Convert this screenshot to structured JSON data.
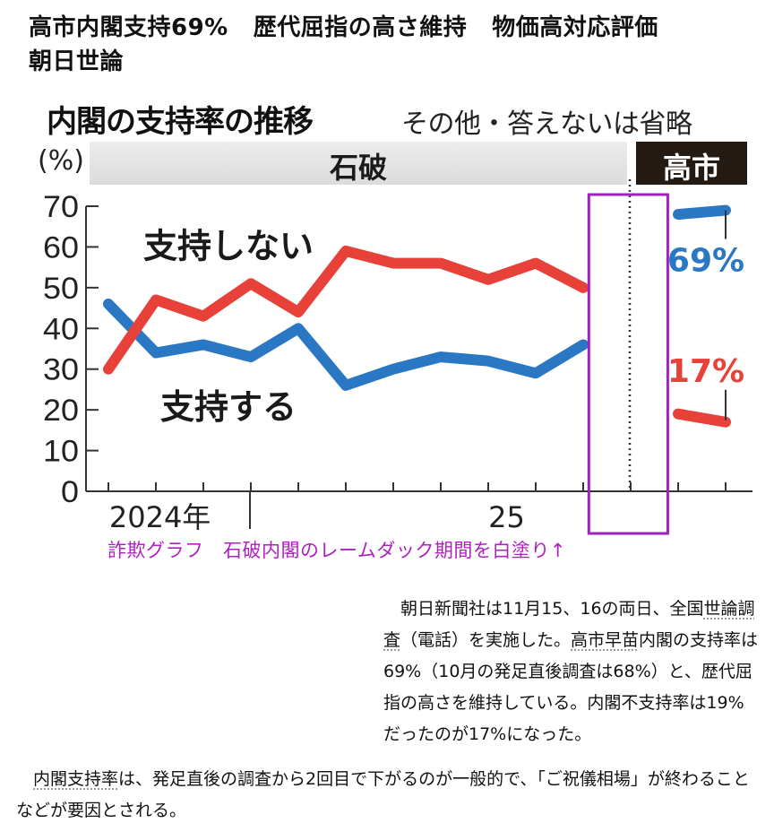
{
  "headline": {
    "part1": "高市内閣支持69%",
    "part2": "歴代屈指の高さ維持",
    "part3": "物価高対応評価",
    "line2": "朝日世論"
  },
  "chart_data": {
    "type": "line",
    "title": "内閣の支持率の推移",
    "subtitle": "その他・答えないは省略",
    "ylabel": "(%)",
    "ylim": [
      0,
      70
    ],
    "yticks": [
      "0",
      "10",
      "20",
      "30",
      "40",
      "50",
      "60",
      "70"
    ],
    "xlabels": [
      {
        "label": "2024年",
        "x": 1.2
      },
      {
        "label": "25",
        "x": 8.5
      }
    ],
    "x_tick_count": 14,
    "year_divider_x": 3,
    "cabinet_divider_x": 11,
    "periods": [
      {
        "name": "石破",
        "from": 0,
        "to": 11,
        "color": "#e2e2e2",
        "text_color": "#1a1a1a"
      },
      {
        "name": "高市",
        "from": 11,
        "to": 13.5,
        "color": "#231a14",
        "text_color": "#ffffff"
      }
    ],
    "series": [
      {
        "name": "支持する",
        "color": "#2a78c4",
        "label_pos": "below",
        "segments": [
          {
            "x": [
              0,
              1,
              2,
              3,
              4,
              5,
              6,
              7,
              8,
              9,
              10
            ],
            "values": [
              46,
              34,
              36,
              33,
              40,
              26,
              30,
              33,
              32,
              29,
              36
            ]
          },
          {
            "x": [
              12,
              13
            ],
            "values": [
              68,
              69
            ]
          }
        ],
        "end_label": "69%"
      },
      {
        "name": "支持しない",
        "color": "#e8413a",
        "label_pos": "above",
        "segments": [
          {
            "x": [
              0,
              1,
              2,
              3,
              4,
              5,
              6,
              7,
              8,
              9,
              10
            ],
            "values": [
              30,
              47,
              43,
              51,
              44,
              59,
              56,
              56,
              52,
              56,
              50
            ]
          },
          {
            "x": [
              12,
              13
            ],
            "values": [
              19,
              17
            ]
          }
        ],
        "end_label": "17%"
      }
    ],
    "highlight_box": {
      "from": 10.1,
      "to": 11.8,
      "color": "#a020c0"
    }
  },
  "annotation": "詐欺グラフ　石破内閣のレームダック期間を白塗り↑",
  "article": {
    "p1_a": "　朝日新聞社は11月15、16の両日、全国",
    "p1_link1": "世論調査",
    "p1_b": "（電話）を実施した。",
    "p1_link2": "高市早苗",
    "p1_c": "内閣の支持率は69%（10月の発足直後調査は68%）と、歴代屈指の高さを維持している。内閣不支持率は19%だったのが17%になった。",
    "p2_link": "内閣支持率",
    "p2_a": "は、発足直後の調査から2回目で下がるのが一般的で、「ご祝儀相場」が終わることなどが要因とされる。"
  }
}
